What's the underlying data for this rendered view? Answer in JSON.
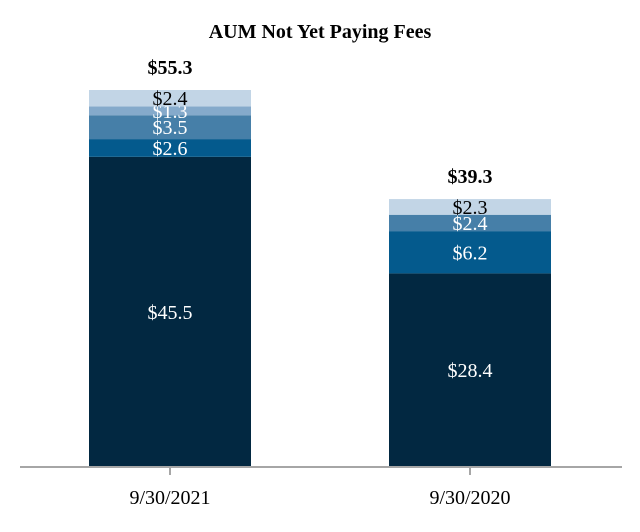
{
  "chart_data": {
    "type": "bar",
    "stacked": true,
    "title": "AUM Not Yet Paying Fees",
    "categories": [
      "9/30/2021",
      "9/30/2020"
    ],
    "totals": [
      "$55.3",
      "$39.3"
    ],
    "totals_values": [
      55.3,
      39.3
    ],
    "segment_colors": [
      "#022841",
      "#045A8D",
      "#467FA8",
      "#85AACB",
      "#C2D5E6"
    ],
    "segment_text_colors": [
      "#ffffff",
      "#ffffff",
      "#ffffff",
      "#ffffff",
      "#000000"
    ],
    "bars": [
      {
        "segments": [
          {
            "value": 45.5,
            "label": "$45.5",
            "color_index": 0
          },
          {
            "value": 2.6,
            "label": "$2.6",
            "color_index": 1
          },
          {
            "value": 3.5,
            "label": "$3.5",
            "color_index": 2
          },
          {
            "value": 1.3,
            "label": "$1.3",
            "color_index": 3
          },
          {
            "value": 2.4,
            "label": "$2.4",
            "color_index": 4
          }
        ]
      },
      {
        "segments": [
          {
            "value": 28.4,
            "label": "$28.4",
            "color_index": 0
          },
          {
            "value": 6.2,
            "label": "$6.2",
            "color_index": 1
          },
          {
            "value": 2.4,
            "label": "$2.4",
            "color_index": 2
          },
          {
            "value": 2.3,
            "label": "$2.3",
            "color_index": 4
          }
        ]
      }
    ],
    "ylim": [
      0,
      55.3
    ],
    "grid": false,
    "legend": "none",
    "xlabel": "",
    "ylabel": ""
  }
}
